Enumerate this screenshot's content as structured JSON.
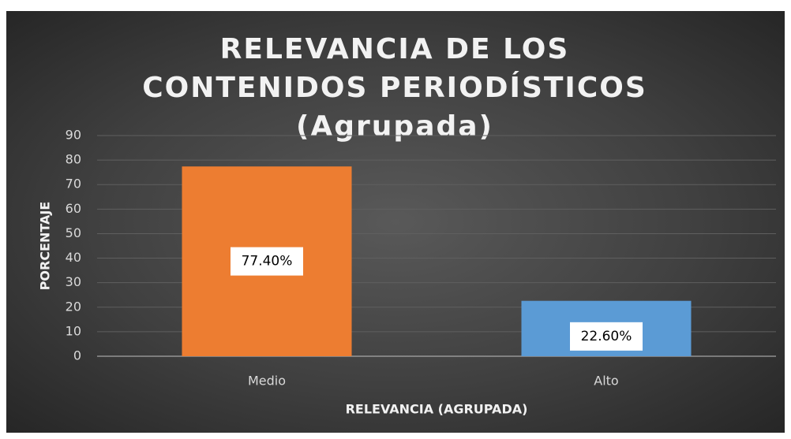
{
  "chart_data": {
    "type": "bar",
    "title": "RELEVANCIA DE LOS CONTENIDOS PERIODÍSTICOS (Agrupada)",
    "x_label": "RELEVANCIA (AGRUPADA)",
    "y_label": "PORCENTAJE",
    "categories": [
      "Medio",
      "Alto"
    ],
    "values": [
      77.4,
      22.6
    ],
    "value_labels": [
      "77.40%",
      "22.60%"
    ],
    "colors": [
      "#ed7d31",
      "#5b9bd5"
    ],
    "ylim": [
      0,
      90
    ],
    "yticks": [
      0,
      10,
      20,
      30,
      40,
      50,
      60,
      70,
      80,
      90
    ],
    "grid": true
  }
}
